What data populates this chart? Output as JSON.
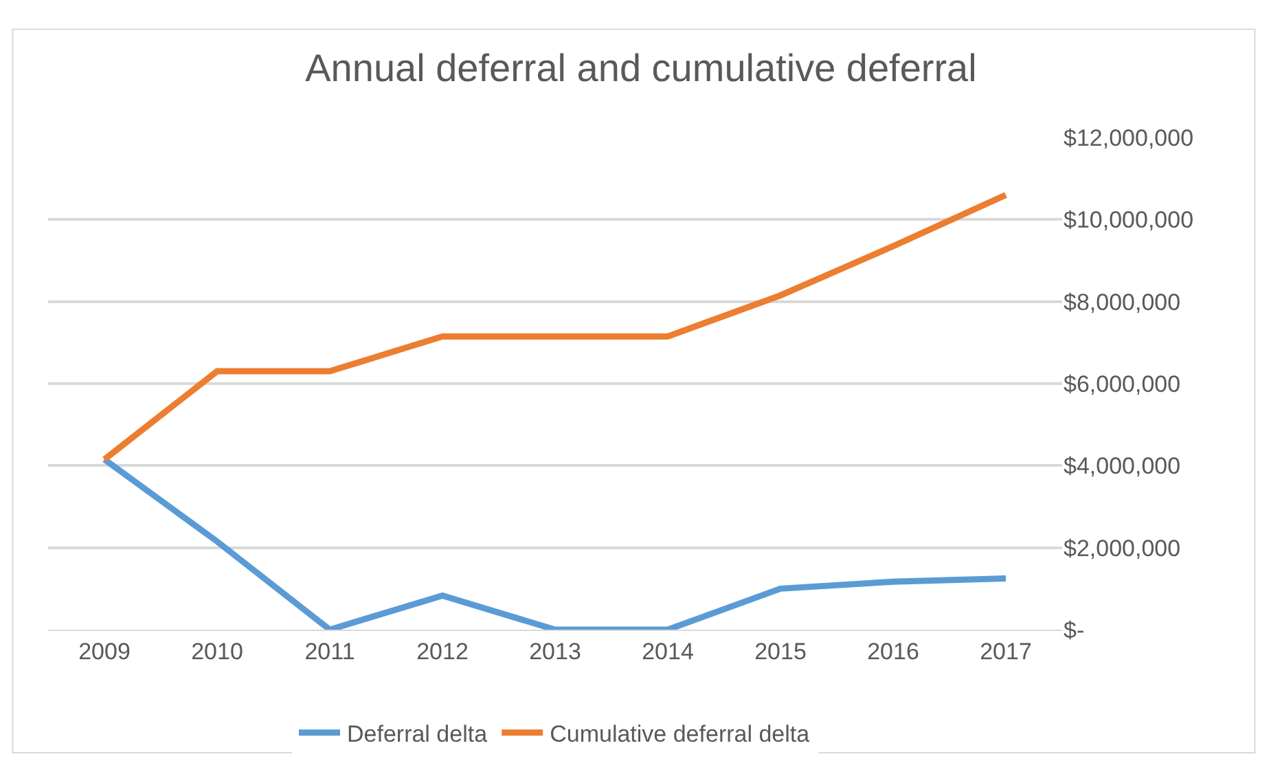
{
  "chart_data": {
    "type": "line",
    "title": "Annual deferral and cumulative deferral",
    "categories": [
      "2009",
      "2010",
      "2011",
      "2012",
      "2013",
      "2014",
      "2015",
      "2016",
      "2017"
    ],
    "series": [
      {
        "name": "Deferral delta",
        "color": "#5b9bd5",
        "values": [
          4150000,
          2150000,
          0,
          830000,
          0,
          0,
          1000000,
          1170000,
          1250000
        ]
      },
      {
        "name": "Cumulative deferral delta",
        "color": "#ed7d31",
        "values": [
          4150000,
          6300000,
          6300000,
          7150000,
          7150000,
          7150000,
          8150000,
          9350000,
          10600000
        ]
      }
    ],
    "ylim": [
      0,
      12000000
    ],
    "yticks": [
      {
        "value": 0,
        "label": "$-"
      },
      {
        "value": 2000000,
        "label": "$2,000,000"
      },
      {
        "value": 4000000,
        "label": "$4,000,000"
      },
      {
        "value": 6000000,
        "label": "$6,000,000"
      },
      {
        "value": 8000000,
        "label": "$8,000,000"
      },
      {
        "value": 10000000,
        "label": "$10,000,000"
      },
      {
        "value": 12000000,
        "label": "$12,000,000"
      }
    ],
    "grid": "y",
    "legend": "bottom",
    "marker": "none",
    "line_style": "solid"
  }
}
